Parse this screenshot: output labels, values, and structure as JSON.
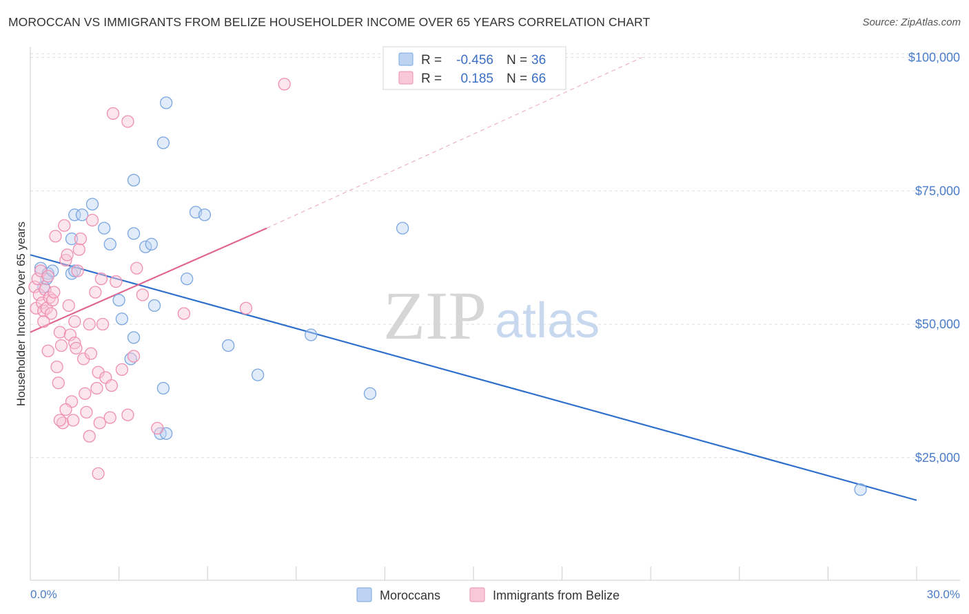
{
  "title": "MOROCCAN VS IMMIGRANTS FROM BELIZE HOUSEHOLDER INCOME OVER 65 YEARS CORRELATION CHART",
  "source": "Source: ZipAtlas.com",
  "colors": {
    "blue": "#7aa7e0",
    "blue_fill": "#bcd3f2",
    "blue_line": "#2f6fcc",
    "pink": "#ef8fb1",
    "pink_fill": "#f8c8d8",
    "pink_line": "#e06690",
    "grid": "#dddddd",
    "axis_text": "#4a7cc7"
  },
  "legend_box": {
    "r_label": "R =",
    "n_label": "N =",
    "rows": [
      {
        "series": "Moroccans",
        "r": "-0.456",
        "n": "36"
      },
      {
        "series": "Immigrants from Belize",
        "r": "0.185",
        "n": "66"
      }
    ]
  },
  "watermark": {
    "zip": "ZIP",
    "atlas": "atlas"
  },
  "chart_data": {
    "type": "scatter",
    "title": "MOROCCAN VS IMMIGRANTS FROM BELIZE HOUSEHOLDER INCOME OVER 65 YEARS CORRELATION CHART",
    "xlabel": "",
    "ylabel": "Householder Income Over 65 years",
    "xlim": [
      0,
      30
    ],
    "ylim": [
      2000,
      102000
    ],
    "x_tick_labels": [
      "0.0%",
      "30.0%"
    ],
    "y_ticks": [
      25000,
      50000,
      75000,
      100000
    ],
    "y_tick_labels": [
      "$25,000",
      "$50,000",
      "$75,000",
      "$100,000"
    ],
    "grid": true,
    "legend_position": "bottom-center",
    "series": [
      {
        "name": "Moroccans",
        "color": "blue",
        "r": -0.456,
        "n": 36,
        "points": [
          [
            0.35,
            60500
          ],
          [
            0.45,
            57000
          ],
          [
            0.6,
            59500
          ],
          [
            1.4,
            59500
          ],
          [
            1.5,
            60000
          ],
          [
            1.4,
            66000
          ],
          [
            1.5,
            70500
          ],
          [
            1.75,
            70500
          ],
          [
            2.1,
            72500
          ],
          [
            2.5,
            68000
          ],
          [
            2.7,
            65000
          ],
          [
            3.0,
            54500
          ],
          [
            3.1,
            51000
          ],
          [
            3.4,
            43500
          ],
          [
            3.5,
            47500
          ],
          [
            3.5,
            67000
          ],
          [
            3.9,
            64500
          ],
          [
            4.1,
            65000
          ],
          [
            4.2,
            53500
          ],
          [
            4.5,
            38000
          ],
          [
            4.4,
            29500
          ],
          [
            4.6,
            29500
          ],
          [
            3.5,
            77000
          ],
          [
            4.5,
            84000
          ],
          [
            4.6,
            91500
          ],
          [
            5.3,
            58500
          ],
          [
            5.6,
            71000
          ],
          [
            5.9,
            70500
          ],
          [
            6.7,
            46000
          ],
          [
            7.7,
            40500
          ],
          [
            9.5,
            48000
          ],
          [
            11.5,
            37000
          ],
          [
            12.6,
            68000
          ],
          [
            28.1,
            19000
          ],
          [
            0.55,
            58500
          ],
          [
            0.75,
            60000
          ]
        ],
        "trend": {
          "x": [
            0,
            30
          ],
          "y": [
            63000,
            17000
          ],
          "style": "solid"
        }
      },
      {
        "name": "Immigrants from Belize",
        "color": "pink",
        "r": 0.185,
        "n": 66,
        "points": [
          [
            0.15,
            57000
          ],
          [
            0.2,
            53000
          ],
          [
            0.25,
            58500
          ],
          [
            0.3,
            55500
          ],
          [
            0.35,
            60000
          ],
          [
            0.4,
            54000
          ],
          [
            0.45,
            52500
          ],
          [
            0.5,
            56500
          ],
          [
            0.55,
            53000
          ],
          [
            0.6,
            59000
          ],
          [
            0.65,
            55000
          ],
          [
            0.7,
            52000
          ],
          [
            0.75,
            54500
          ],
          [
            0.8,
            56000
          ],
          [
            0.85,
            66500
          ],
          [
            0.9,
            42000
          ],
          [
            0.95,
            39000
          ],
          [
            1.0,
            48500
          ],
          [
            1.05,
            46000
          ],
          [
            1.1,
            31500
          ],
          [
            1.15,
            68500
          ],
          [
            1.2,
            62000
          ],
          [
            1.25,
            63000
          ],
          [
            1.3,
            53500
          ],
          [
            1.35,
            48000
          ],
          [
            1.4,
            35500
          ],
          [
            1.45,
            32000
          ],
          [
            1.5,
            46500
          ],
          [
            1.55,
            45500
          ],
          [
            1.6,
            60000
          ],
          [
            1.65,
            64000
          ],
          [
            1.7,
            66000
          ],
          [
            1.8,
            43500
          ],
          [
            1.85,
            37000
          ],
          [
            1.9,
            33500
          ],
          [
            2.0,
            29000
          ],
          [
            2.05,
            44500
          ],
          [
            2.1,
            69500
          ],
          [
            2.2,
            56000
          ],
          [
            2.25,
            38000
          ],
          [
            2.3,
            41000
          ],
          [
            2.35,
            31500
          ],
          [
            2.4,
            58500
          ],
          [
            2.45,
            50000
          ],
          [
            2.55,
            40000
          ],
          [
            2.7,
            32500
          ],
          [
            2.75,
            38500
          ],
          [
            2.9,
            58000
          ],
          [
            3.1,
            41500
          ],
          [
            3.3,
            33000
          ],
          [
            3.5,
            44000
          ],
          [
            3.6,
            60500
          ],
          [
            3.8,
            55500
          ],
          [
            4.3,
            30500
          ],
          [
            5.2,
            52000
          ],
          [
            7.3,
            53000
          ],
          [
            8.6,
            95000
          ],
          [
            2.3,
            22000
          ],
          [
            2.8,
            89500
          ],
          [
            3.3,
            88000
          ],
          [
            1.0,
            32000
          ],
          [
            1.2,
            34000
          ],
          [
            0.6,
            45000
          ],
          [
            2.0,
            50000
          ],
          [
            1.5,
            50500
          ],
          [
            0.45,
            50500
          ]
        ],
        "trend": {
          "x": [
            0,
            8
          ],
          "y": [
            48500,
            68000
          ],
          "style": "solid",
          "extension": {
            "x": [
              8,
              20.7
            ],
            "y": [
              68000,
              100000
            ],
            "style": "dashed"
          }
        }
      }
    ]
  }
}
